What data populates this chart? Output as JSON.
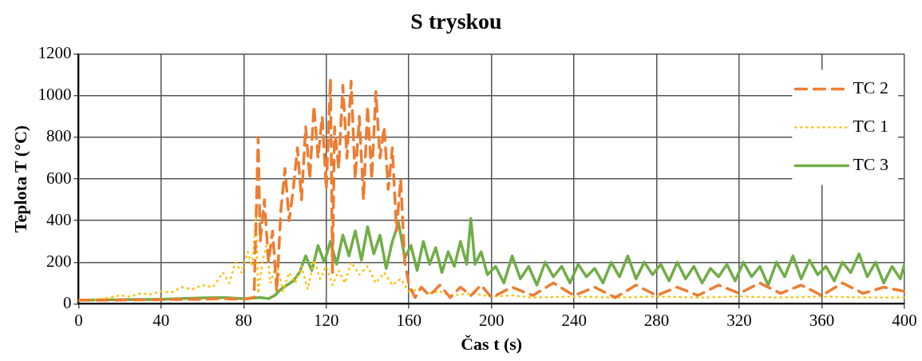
{
  "chart_data": {
    "type": "line",
    "title": "S tryskou",
    "xlabel": "Čas t (s)",
    "ylabel": "Teplota T (°C)",
    "xlim": [
      0,
      400
    ],
    "xticks": [
      0,
      40,
      80,
      120,
      160,
      200,
      240,
      280,
      320,
      360,
      400
    ],
    "ylim": [
      0,
      1200
    ],
    "yticks": [
      0,
      200,
      400,
      600,
      800,
      1000,
      1200
    ],
    "grid": true,
    "legend": "top right",
    "marker": "none",
    "series": [
      {
        "name": "TC 2",
        "color": "#ed7d31",
        "line_style": "dashed",
        "x": [
          0,
          20,
          40,
          60,
          70,
          80,
          85,
          87,
          88,
          90,
          92,
          94,
          96,
          98,
          100,
          102,
          104,
          106,
          108,
          110,
          112,
          114,
          116,
          118,
          120,
          122,
          123,
          124,
          126,
          128,
          130,
          132,
          134,
          136,
          138,
          140,
          142,
          144,
          146,
          148,
          150,
          152,
          154,
          156,
          158,
          160,
          163,
          166,
          170,
          175,
          180,
          185,
          190,
          195,
          200,
          210,
          220,
          230,
          240,
          250,
          260,
          270,
          280,
          290,
          300,
          310,
          320,
          330,
          340,
          350,
          360,
          370,
          380,
          390,
          400
        ],
        "values": [
          18,
          18,
          20,
          22,
          25,
          22,
          30,
          800,
          300,
          500,
          200,
          350,
          60,
          450,
          650,
          400,
          550,
          750,
          500,
          850,
          600,
          950,
          700,
          900,
          550,
          1080,
          150,
          850,
          650,
          1050,
          700,
          1070,
          600,
          900,
          500,
          950,
          600,
          1020,
          700,
          850,
          550,
          750,
          350,
          600,
          200,
          90,
          30,
          80,
          40,
          90,
          30,
          80,
          40,
          90,
          30,
          80,
          40,
          100,
          40,
          80,
          30,
          90,
          40,
          80,
          40,
          90,
          50,
          100,
          50,
          90,
          40,
          100,
          50,
          80,
          60
        ]
      },
      {
        "name": "TC 1",
        "color": "#ffc000",
        "line_style": "dotted",
        "x": [
          0,
          8,
          15,
          20,
          25,
          30,
          35,
          40,
          45,
          50,
          55,
          60,
          65,
          70,
          73,
          76,
          79,
          82,
          84,
          86,
          87,
          89,
          91,
          93,
          96,
          99,
          102,
          105,
          108,
          111,
          114,
          117,
          120,
          123,
          126,
          129,
          132,
          136,
          140,
          144,
          148,
          152,
          156,
          160,
          165,
          170,
          175,
          180,
          190,
          200,
          210,
          220,
          240,
          260,
          280,
          300,
          320,
          340,
          360,
          380,
          400
        ],
        "values": [
          15,
          20,
          30,
          40,
          35,
          50,
          45,
          60,
          55,
          80,
          70,
          90,
          80,
          150,
          100,
          200,
          150,
          250,
          180,
          420,
          50,
          200,
          280,
          100,
          200,
          60,
          150,
          100,
          180,
          70,
          210,
          120,
          180,
          90,
          160,
          100,
          200,
          140,
          180,
          100,
          150,
          90,
          120,
          60,
          70,
          50,
          60,
          40,
          50,
          35,
          40,
          30,
          35,
          30,
          35,
          30,
          35,
          30,
          35,
          30,
          30
        ]
      },
      {
        "name": "TC 3",
        "color": "#70ad47",
        "line_style": "solid",
        "x": [
          0,
          20,
          40,
          60,
          70,
          80,
          88,
          92,
          95,
          98,
          101,
          104,
          107,
          110,
          113,
          116,
          119,
          122,
          125,
          128,
          131,
          134,
          137,
          140,
          143,
          146,
          149,
          152,
          155,
          158,
          161,
          164,
          167,
          170,
          173,
          176,
          179,
          182,
          185,
          188,
          190,
          192,
          195,
          198,
          202,
          206,
          210,
          214,
          218,
          222,
          226,
          230,
          234,
          238,
          242,
          246,
          250,
          254,
          258,
          262,
          266,
          270,
          274,
          278,
          282,
          286,
          290,
          294,
          298,
          302,
          306,
          310,
          314,
          318,
          322,
          326,
          330,
          334,
          338,
          342,
          346,
          350,
          354,
          358,
          362,
          366,
          370,
          374,
          378,
          382,
          386,
          390,
          394,
          398,
          400
        ],
        "values": [
          18,
          20,
          22,
          28,
          30,
          25,
          30,
          25,
          40,
          70,
          90,
          110,
          150,
          230,
          160,
          280,
          200,
          300,
          190,
          330,
          230,
          350,
          210,
          370,
          240,
          330,
          170,
          300,
          390,
          220,
          280,
          160,
          300,
          190,
          270,
          150,
          250,
          180,
          300,
          190,
          410,
          190,
          250,
          140,
          180,
          100,
          230,
          120,
          180,
          90,
          200,
          130,
          180,
          100,
          190,
          130,
          170,
          100,
          200,
          130,
          230,
          120,
          200,
          140,
          190,
          110,
          200,
          120,
          180,
          100,
          170,
          130,
          190,
          110,
          200,
          130,
          180,
          90,
          200,
          130,
          230,
          120,
          210,
          140,
          180,
          110,
          200,
          150,
          240,
          130,
          200,
          100,
          180,
          120,
          190
        ]
      }
    ]
  }
}
